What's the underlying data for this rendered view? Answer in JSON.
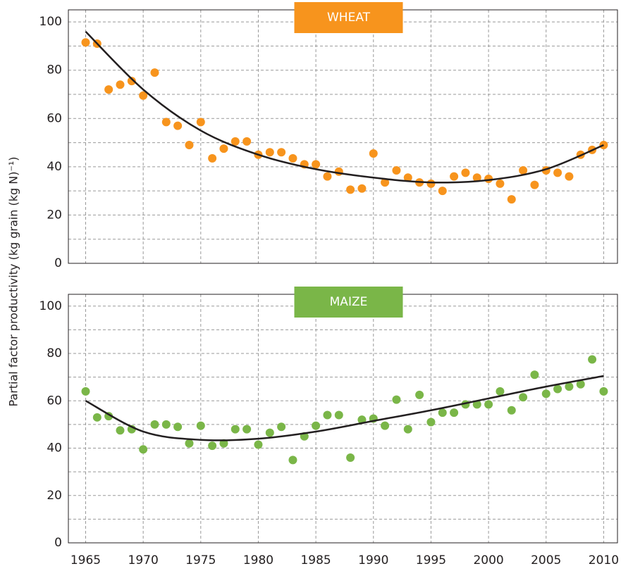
{
  "ylabel": "Partial factor productivity (kg grain (kg N)⁻¹)",
  "chart_data": [
    {
      "type": "scatter",
      "title": "WHEAT",
      "title_color": "#f7941d",
      "x": [
        1965,
        1966,
        1967,
        1968,
        1969,
        1970,
        1971,
        1972,
        1973,
        1974,
        1975,
        1976,
        1977,
        1978,
        1979,
        1980,
        1981,
        1982,
        1983,
        1984,
        1985,
        1986,
        1987,
        1988,
        1989,
        1990,
        1991,
        1992,
        1993,
        1994,
        1995,
        1996,
        1997,
        1998,
        1999,
        2000,
        2001,
        2002,
        2003,
        2004,
        2005,
        2006,
        2007,
        2008,
        2009,
        2010
      ],
      "series": [
        {
          "type": "scatter",
          "color": "#f7941d",
          "values": [
            91.5,
            91,
            72,
            74,
            75.5,
            69.5,
            79,
            58.5,
            57,
            49,
            58.5,
            43.5,
            47.5,
            50.5,
            50.5,
            45,
            46,
            46,
            43.5,
            41,
            41,
            36,
            38,
            30.5,
            31,
            45.5,
            33.5,
            38.5,
            35.5,
            33.5,
            33,
            30,
            36,
            37.5,
            35.5,
            35,
            33,
            26.5,
            38.5,
            32.5,
            38.5,
            37.5,
            36,
            45,
            47,
            49
          ]
        },
        {
          "type": "line",
          "color": "#231f20",
          "x": [
            1965,
            1970,
            1975,
            1980,
            1985,
            1990,
            1995,
            2000,
            2005,
            2010
          ],
          "values": [
            96,
            72,
            55,
            45,
            39,
            35.5,
            33.5,
            34.5,
            39,
            49
          ]
        }
      ],
      "xlim": [
        1963.5,
        2011.2
      ],
      "xticks": [
        1965,
        1970,
        1975,
        1980,
        1985,
        1990,
        1995,
        2000,
        2005,
        2010
      ],
      "show_xtick_labels": false,
      "ylim": [
        0,
        105
      ],
      "yticks": [
        0,
        20,
        40,
        60,
        80,
        100
      ],
      "minor_yticks": [
        10,
        30,
        50,
        70,
        90
      ],
      "grid": true
    },
    {
      "type": "scatter",
      "title": "MAIZE",
      "title_color": "#7ab648",
      "x": [
        1965,
        1966,
        1967,
        1968,
        1969,
        1970,
        1971,
        1972,
        1973,
        1974,
        1975,
        1976,
        1977,
        1978,
        1979,
        1980,
        1981,
        1982,
        1983,
        1984,
        1985,
        1986,
        1987,
        1988,
        1989,
        1990,
        1991,
        1992,
        1993,
        1994,
        1995,
        1996,
        1997,
        1998,
        1999,
        2000,
        2001,
        2002,
        2003,
        2004,
        2005,
        2006,
        2007,
        2008,
        2009,
        2010
      ],
      "series": [
        {
          "type": "scatter",
          "color": "#7ab648",
          "values": [
            64,
            53,
            53.5,
            47.5,
            48,
            39.5,
            50,
            50,
            49,
            42,
            49.5,
            41,
            42,
            48,
            48,
            41.5,
            46.5,
            49,
            35,
            45,
            49.5,
            54,
            54,
            36,
            52,
            52.5,
            49.5,
            60.5,
            48,
            62.5,
            51,
            55,
            55,
            58.5,
            58.5,
            58.5,
            64,
            56,
            61.5,
            71,
            63,
            65,
            66,
            67,
            77.5,
            64
          ]
        },
        {
          "type": "line",
          "color": "#231f20",
          "x": [
            1965,
            1970,
            1975,
            1980,
            1985,
            1990,
            1995,
            2000,
            2005,
            2010
          ],
          "values": [
            60,
            47,
            43.5,
            44,
            47,
            51.5,
            56,
            61,
            66,
            70.5
          ]
        }
      ],
      "xlim": [
        1963.5,
        2011.2
      ],
      "xticks": [
        1965,
        1970,
        1975,
        1980,
        1985,
        1990,
        1995,
        2000,
        2005,
        2010
      ],
      "show_xtick_labels": true,
      "ylim": [
        0,
        105
      ],
      "yticks": [
        0,
        20,
        40,
        60,
        80,
        100
      ],
      "minor_yticks": [
        10,
        30,
        50,
        70,
        90
      ],
      "grid": true
    }
  ]
}
